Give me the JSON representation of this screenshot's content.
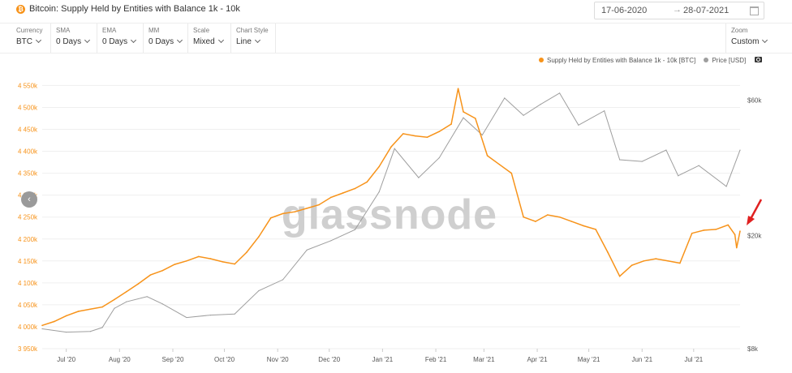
{
  "header": {
    "asset_badge": "₿",
    "title": "Bitcoin: Supply Held by Entities with Balance 1k - 10k",
    "date_from": "17-06-2020",
    "date_arrow": "→",
    "date_to": "28-07-2021",
    "calendar_icon": "calendar-icon"
  },
  "toolbar": {
    "controls": [
      {
        "label": "Currency",
        "value": "BTC"
      },
      {
        "label": "SMA",
        "value": "0 Days"
      },
      {
        "label": "EMA",
        "value": "0 Days"
      },
      {
        "label": "MM",
        "value": "0 Days"
      },
      {
        "label": "Scale",
        "value": "Mixed"
      },
      {
        "label": "Chart Style",
        "value": "Line"
      }
    ],
    "zoom": {
      "label": "Zoom",
      "value": "Custom"
    }
  },
  "legend": {
    "series1": "Supply Held by Entities with Balance 1k - 10k [BTC]",
    "series2": "Price [USD]",
    "series1_color": "#f7931a",
    "series2_color": "#9e9e9e",
    "camera_icon": "camera-icon"
  },
  "watermark": "glassnode",
  "nav_button": "‹",
  "annotation": {
    "icon": "red-arrow-icon",
    "color": "#e02020"
  },
  "chart_data": {
    "type": "line",
    "x_ticks": [
      "Jul '20",
      "Aug '20",
      "Sep '20",
      "Oct '20",
      "Nov '20",
      "Dec '20",
      "Jan '21",
      "Feb '21",
      "Mar '21",
      "Apr '21",
      "May '21",
      "Jun '21",
      "Jul '21"
    ],
    "y_left": {
      "ticks": [
        "3 950k",
        "4 000k",
        "4 050k",
        "4 100k",
        "4 150k",
        "4 200k",
        "4 250k",
        "4 300k",
        "4 350k",
        "4 400k",
        "4 450k",
        "4 500k",
        "4 550k"
      ],
      "range": [
        3950000,
        4560000
      ]
    },
    "y_right": {
      "ticks": [
        "$8k",
        "$20k",
        "$60k"
      ],
      "scale": "log",
      "range": [
        8000,
        70000
      ]
    },
    "series": [
      {
        "name": "Supply Held by Entities with Balance 1k - 10k [BTC]",
        "color": "#f7931a",
        "axis": "left",
        "points": [
          [
            "2020-06-17",
            4003000
          ],
          [
            "2020-06-24",
            4012000
          ],
          [
            "2020-07-01",
            4025000
          ],
          [
            "2020-07-08",
            4035000
          ],
          [
            "2020-07-15",
            4040000
          ],
          [
            "2020-07-22",
            4045000
          ],
          [
            "2020-07-29",
            4062000
          ],
          [
            "2020-08-05",
            4080000
          ],
          [
            "2020-08-12",
            4098000
          ],
          [
            "2020-08-19",
            4118000
          ],
          [
            "2020-08-26",
            4128000
          ],
          [
            "2020-09-02",
            4142000
          ],
          [
            "2020-09-09",
            4150000
          ],
          [
            "2020-09-16",
            4160000
          ],
          [
            "2020-09-23",
            4155000
          ],
          [
            "2020-09-30",
            4148000
          ],
          [
            "2020-10-07",
            4143000
          ],
          [
            "2020-10-14",
            4170000
          ],
          [
            "2020-10-21",
            4205000
          ],
          [
            "2020-10-28",
            4248000
          ],
          [
            "2020-11-04",
            4258000
          ],
          [
            "2020-11-11",
            4262000
          ],
          [
            "2020-11-18",
            4270000
          ],
          [
            "2020-11-25",
            4278000
          ],
          [
            "2020-12-02",
            4295000
          ],
          [
            "2020-12-09",
            4305000
          ],
          [
            "2020-12-16",
            4315000
          ],
          [
            "2020-12-23",
            4330000
          ],
          [
            "2020-12-30",
            4365000
          ],
          [
            "2021-01-06",
            4410000
          ],
          [
            "2021-01-13",
            4440000
          ],
          [
            "2021-01-20",
            4435000
          ],
          [
            "2021-01-27",
            4432000
          ],
          [
            "2021-02-03",
            4445000
          ],
          [
            "2021-02-10",
            4462000
          ],
          [
            "2021-02-14",
            4543000
          ],
          [
            "2021-02-17",
            4490000
          ],
          [
            "2021-02-24",
            4475000
          ],
          [
            "2021-03-03",
            4390000
          ],
          [
            "2021-03-10",
            4370000
          ],
          [
            "2021-03-17",
            4350000
          ],
          [
            "2021-03-24",
            4250000
          ],
          [
            "2021-03-31",
            4240000
          ],
          [
            "2021-04-07",
            4255000
          ],
          [
            "2021-04-14",
            4250000
          ],
          [
            "2021-04-21",
            4240000
          ],
          [
            "2021-04-28",
            4230000
          ],
          [
            "2021-05-05",
            4222000
          ],
          [
            "2021-05-12",
            4170000
          ],
          [
            "2021-05-19",
            4115000
          ],
          [
            "2021-05-26",
            4140000
          ],
          [
            "2021-06-02",
            4150000
          ],
          [
            "2021-06-09",
            4155000
          ],
          [
            "2021-06-16",
            4150000
          ],
          [
            "2021-06-23",
            4145000
          ],
          [
            "2021-06-30",
            4213000
          ],
          [
            "2021-07-07",
            4220000
          ],
          [
            "2021-07-14",
            4222000
          ],
          [
            "2021-07-21",
            4232000
          ],
          [
            "2021-07-25",
            4210000
          ],
          [
            "2021-07-26",
            4180000
          ],
          [
            "2021-07-28",
            4218000
          ]
        ]
      },
      {
        "name": "Price [USD]",
        "color": "#9e9e9e",
        "axis": "right",
        "points": [
          [
            "2020-06-17",
            9400
          ],
          [
            "2020-07-01",
            9150
          ],
          [
            "2020-07-15",
            9200
          ],
          [
            "2020-07-22",
            9500
          ],
          [
            "2020-07-29",
            11100
          ],
          [
            "2020-08-05",
            11700
          ],
          [
            "2020-08-17",
            12200
          ],
          [
            "2020-08-26",
            11500
          ],
          [
            "2020-09-09",
            10300
          ],
          [
            "2020-09-23",
            10500
          ],
          [
            "2020-10-07",
            10600
          ],
          [
            "2020-10-21",
            12800
          ],
          [
            "2020-11-04",
            14000
          ],
          [
            "2020-11-18",
            17800
          ],
          [
            "2020-12-02",
            19200
          ],
          [
            "2020-12-16",
            21000
          ],
          [
            "2020-12-30",
            28500
          ],
          [
            "2021-01-08",
            40500
          ],
          [
            "2021-01-22",
            32000
          ],
          [
            "2021-02-03",
            37600
          ],
          [
            "2021-02-17",
            52000
          ],
          [
            "2021-02-28",
            45200
          ],
          [
            "2021-03-13",
            61000
          ],
          [
            "2021-03-24",
            53000
          ],
          [
            "2021-04-03",
            58000
          ],
          [
            "2021-04-14",
            63500
          ],
          [
            "2021-04-25",
            49000
          ],
          [
            "2021-05-10",
            55000
          ],
          [
            "2021-05-19",
            37000
          ],
          [
            "2021-06-01",
            36500
          ],
          [
            "2021-06-15",
            40000
          ],
          [
            "2021-06-22",
            32500
          ],
          [
            "2021-07-04",
            35300
          ],
          [
            "2021-07-20",
            29800
          ],
          [
            "2021-07-28",
            40000
          ]
        ]
      }
    ],
    "grid": "horizontal",
    "legend_position": "top-right"
  }
}
